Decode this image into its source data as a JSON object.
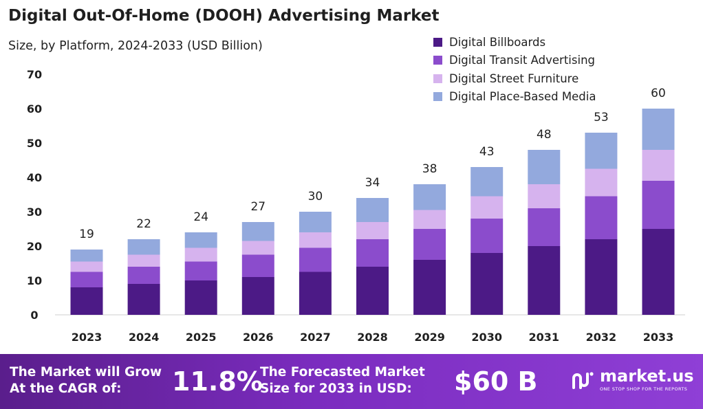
{
  "chart_data": {
    "type": "bar",
    "stacked": true,
    "title": "Digital Out-Of-Home (DOOH) Advertising Market",
    "subtitle": "Size, by Platform, 2024-2033 (USD Billion)",
    "categories": [
      "2023",
      "2024",
      "2025",
      "2026",
      "2027",
      "2028",
      "2029",
      "2030",
      "2031",
      "2032",
      "2033"
    ],
    "totals": [
      19,
      22,
      24,
      27,
      30,
      34,
      38,
      43,
      48,
      53,
      60
    ],
    "series": [
      {
        "name": "Digital Billboards",
        "color": "#4c1a86",
        "values": [
          8,
          9,
          10,
          11,
          12.5,
          14,
          16,
          18,
          20,
          22,
          25
        ]
      },
      {
        "name": "Digital Transit Advertising",
        "color": "#8b4ccc",
        "values": [
          4.5,
          5,
          5.5,
          6.5,
          7,
          8,
          9,
          10,
          11,
          12.5,
          14
        ]
      },
      {
        "name": "Digital Street Furniture",
        "color": "#d6b3ee",
        "values": [
          3,
          3.5,
          4,
          4,
          4.5,
          5,
          5.5,
          6.5,
          7,
          8,
          9
        ]
      },
      {
        "name": "Digital Place-Based Media",
        "color": "#93a9dd",
        "values": [
          3.5,
          4.5,
          4.5,
          5.5,
          6,
          7,
          7.5,
          8.5,
          10,
          10.5,
          12
        ]
      }
    ],
    "yticks": [
      0,
      10,
      20,
      30,
      40,
      50,
      60,
      70
    ],
    "ylim": [
      0,
      70
    ],
    "grid": false,
    "legend_position": "top-right"
  },
  "banner": {
    "cagr_label_line1": "The Market will Grow",
    "cagr_label_line2": "At the CAGR of:",
    "cagr_value": "11.8%",
    "forecast_label_line1": "The Forecasted Market",
    "forecast_label_line2": "Size for 2033 in USD:",
    "forecast_value": "$60 B"
  },
  "logo": {
    "name": "market.us",
    "tagline": "ONE STOP SHOP FOR THE REPORTS"
  }
}
